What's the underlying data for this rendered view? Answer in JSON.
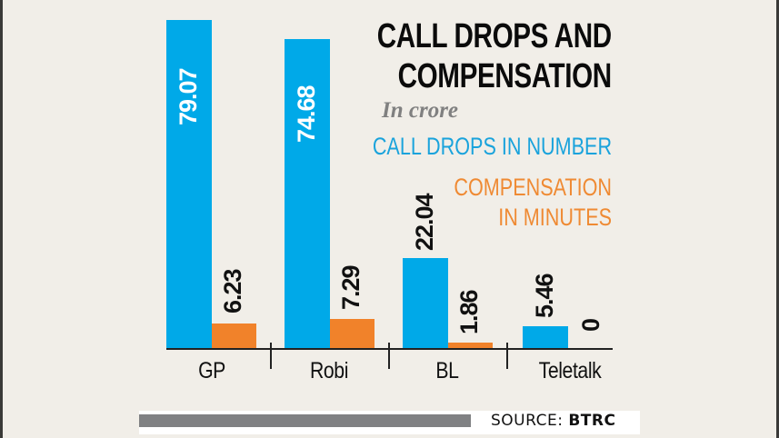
{
  "title": {
    "line1": "CALL DROPS AND",
    "line2": "COMPENSATION"
  },
  "subtitle": "In crore",
  "legend": {
    "call_drops": "CALL DROPS IN NUMBER",
    "compensation_line1": "COMPENSATION",
    "compensation_line2": "IN MINUTES"
  },
  "colors": {
    "call_drops": "#00a9e8",
    "compensation": "#f1822a",
    "background": "#f1eee8"
  },
  "bars": {
    "gp": {
      "label": "GP",
      "call_drops": "79.07",
      "compensation": "6.23"
    },
    "robi": {
      "label": "Robi",
      "call_drops": "74.68",
      "compensation": "7.29"
    },
    "bl": {
      "label": "BL",
      "call_drops": "22.04",
      "compensation": "1.86"
    },
    "teletalk": {
      "label": "Teletalk",
      "call_drops": "5.46",
      "compensation": "0"
    }
  },
  "source": {
    "prefix": "SOURCE:",
    "name": "BTRC"
  },
  "chart_data": {
    "type": "bar",
    "title": "CALL DROPS AND COMPENSATION",
    "subtitle": "In crore",
    "categories": [
      "GP",
      "Robi",
      "BL",
      "Teletalk"
    ],
    "series": [
      {
        "name": "CALL DROPS IN NUMBER",
        "color": "#00a9e8",
        "values": [
          79.07,
          74.68,
          22.04,
          5.46
        ]
      },
      {
        "name": "COMPENSATION IN MINUTES",
        "color": "#f1822a",
        "values": [
          6.23,
          7.29,
          1.86,
          0
        ]
      }
    ],
    "xlabel": "",
    "ylabel": "",
    "ylim": [
      0,
      80
    ],
    "grid": false,
    "legend_position": "top-right",
    "data_labels": true,
    "source": "SOURCE: BTRC"
  }
}
